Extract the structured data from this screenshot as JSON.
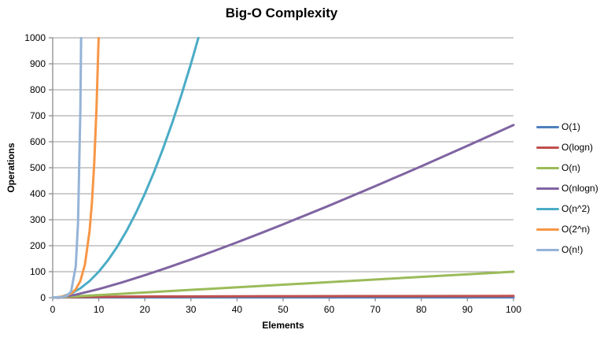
{
  "chart_data": {
    "type": "line",
    "title": "Big-O Complexity",
    "xlabel": "Elements",
    "ylabel": "Operations",
    "xlim": [
      0,
      100
    ],
    "ylim": [
      0,
      1000
    ],
    "x_ticks": [
      0,
      10,
      20,
      30,
      40,
      50,
      60,
      70,
      80,
      90,
      100
    ],
    "y_ticks": [
      0,
      100,
      200,
      300,
      400,
      500,
      600,
      700,
      800,
      900,
      1000
    ],
    "grid": "horizontal",
    "legend_position": "right",
    "series": [
      {
        "name": "O(1)",
        "color": "#4F81BD",
        "formula": "1",
        "points": [
          [
            0,
            1
          ],
          [
            100,
            1
          ]
        ]
      },
      {
        "name": "O(logn)",
        "color": "#C0504D",
        "formula": "log2(n)",
        "points": [
          [
            1,
            0
          ],
          [
            2,
            1
          ],
          [
            3,
            1.58
          ],
          [
            4,
            2
          ],
          [
            6,
            2.58
          ],
          [
            8,
            3
          ],
          [
            12,
            3.58
          ],
          [
            16,
            4
          ],
          [
            24,
            4.58
          ],
          [
            32,
            5
          ],
          [
            48,
            5.58
          ],
          [
            64,
            6
          ],
          [
            100,
            6.64
          ]
        ]
      },
      {
        "name": "O(n)",
        "color": "#9BBB59",
        "formula": "n",
        "points": [
          [
            0,
            0
          ],
          [
            100,
            100
          ]
        ]
      },
      {
        "name": "O(nlogn)",
        "color": "#8064A2",
        "formula": "n*log2(n)",
        "points": [
          [
            1,
            0
          ],
          [
            5,
            11.6
          ],
          [
            10,
            33.2
          ],
          [
            15,
            58.6
          ],
          [
            20,
            86.4
          ],
          [
            25,
            116.1
          ],
          [
            30,
            147.2
          ],
          [
            35,
            179.5
          ],
          [
            40,
            212.9
          ],
          [
            45,
            247.1
          ],
          [
            50,
            282.2
          ],
          [
            60,
            354.4
          ],
          [
            70,
            429.1
          ],
          [
            80,
            505.8
          ],
          [
            90,
            584.3
          ],
          [
            100,
            664.4
          ]
        ]
      },
      {
        "name": "O(n^2)",
        "color": "#4BACC6",
        "formula": "n^2",
        "points": [
          [
            0,
            0
          ],
          [
            2,
            4
          ],
          [
            4,
            16
          ],
          [
            6,
            36
          ],
          [
            8,
            64
          ],
          [
            10,
            100
          ],
          [
            12,
            144
          ],
          [
            14,
            196
          ],
          [
            16,
            256
          ],
          [
            18,
            324
          ],
          [
            20,
            400
          ],
          [
            22,
            484
          ],
          [
            24,
            576
          ],
          [
            26,
            676
          ],
          [
            28,
            784
          ],
          [
            30,
            900
          ],
          [
            31.62,
            1000
          ]
        ]
      },
      {
        "name": "O(2^n)",
        "color": "#F79646",
        "formula": "2^n",
        "points": [
          [
            0,
            1
          ],
          [
            1,
            2
          ],
          [
            2,
            4
          ],
          [
            3,
            8
          ],
          [
            4,
            16
          ],
          [
            5,
            32
          ],
          [
            6,
            64
          ],
          [
            7,
            128
          ],
          [
            8,
            256
          ],
          [
            8.5,
            362
          ],
          [
            9,
            512
          ],
          [
            9.5,
            724
          ],
          [
            9.97,
            1000
          ]
        ]
      },
      {
        "name": "O(n!)",
        "color": "#95B3D7",
        "formula": "n!",
        "points": [
          [
            0,
            1
          ],
          [
            1,
            1
          ],
          [
            2,
            2
          ],
          [
            3,
            6
          ],
          [
            4,
            24
          ],
          [
            5,
            120
          ],
          [
            5.5,
            288
          ],
          [
            6,
            720
          ],
          [
            6.17,
            1000
          ]
        ]
      }
    ]
  },
  "styles": {
    "grid_color": "#9B9B9B",
    "axis_color": "#8C8C8C",
    "tick_label_color": "#000000",
    "background": "#FFFFFF"
  }
}
